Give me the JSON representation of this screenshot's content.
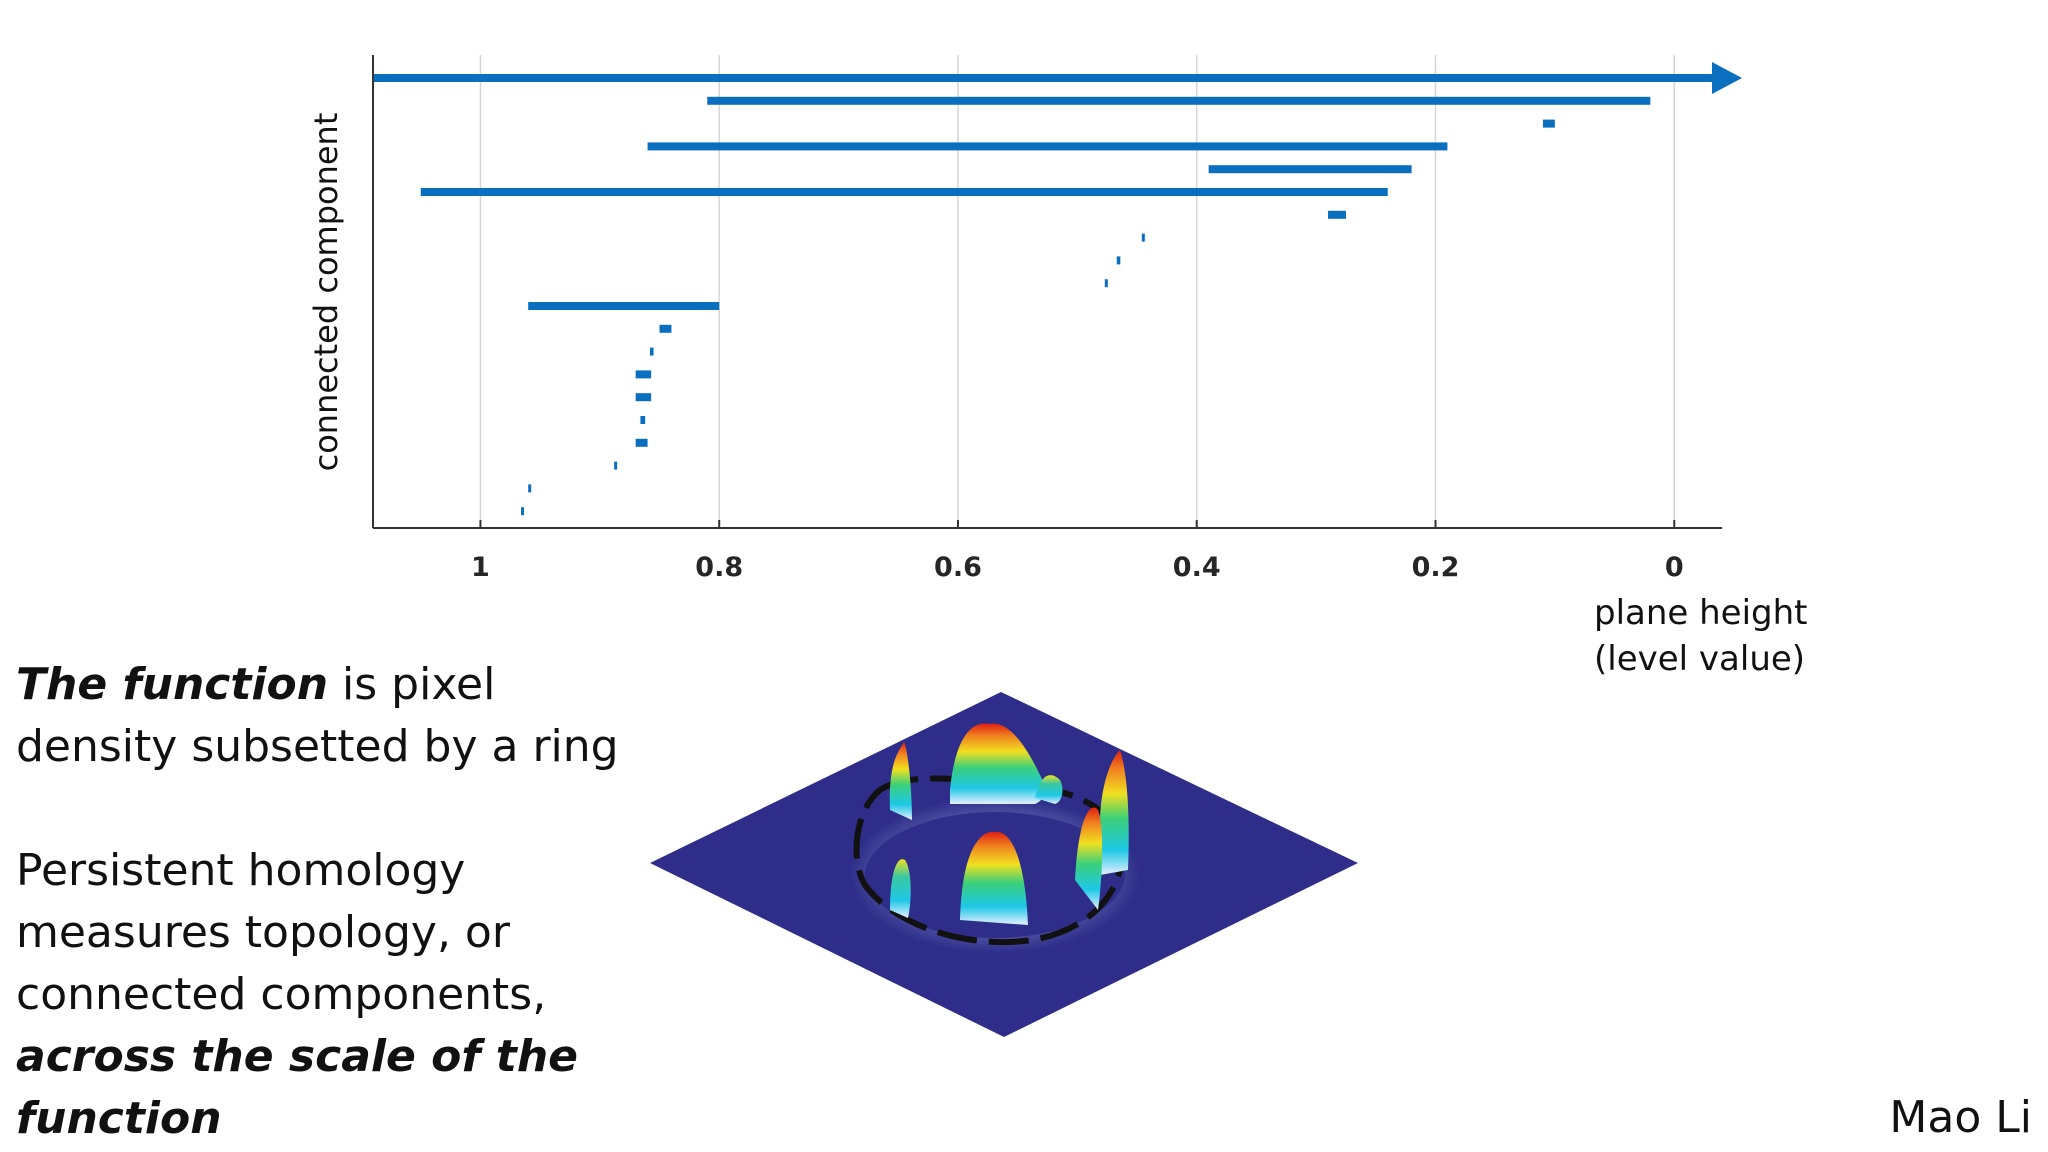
{
  "chart_data": {
    "type": "barcode",
    "title": "",
    "xlabel_line1": "plane height",
    "xlabel_line2": "(level value)",
    "ylabel": "connected component",
    "x_reversed": true,
    "xlim": [
      1.09,
      -0.04
    ],
    "xticks": [
      1,
      0.8,
      0.6,
      0.4,
      0.2,
      0
    ],
    "xtick_labels": [
      "1",
      "0.8",
      "0.6",
      "0.4",
      "0.2",
      "0"
    ],
    "grid": "vertical",
    "bar_color": "#0b6fc0",
    "bars": [
      {
        "birth": 1.09,
        "death": -0.04,
        "infinite": true
      },
      {
        "birth": 0.81,
        "death": 0.02
      },
      {
        "birth": 0.11,
        "death": 0.1
      },
      {
        "birth": 0.86,
        "death": 0.19
      },
      {
        "birth": 0.39,
        "death": 0.22
      },
      {
        "birth": 1.05,
        "death": 0.24
      },
      {
        "birth": 0.29,
        "death": 0.275
      },
      {
        "birth": 0.446,
        "death": 0.444
      },
      {
        "birth": 0.467,
        "death": 0.464
      },
      {
        "birth": 0.477,
        "death": 0.475
      },
      {
        "birth": 0.96,
        "death": 0.8
      },
      {
        "birth": 0.85,
        "death": 0.84
      },
      {
        "birth": 0.858,
        "death": 0.855
      },
      {
        "birth": 0.87,
        "death": 0.857
      },
      {
        "birth": 0.87,
        "death": 0.857
      },
      {
        "birth": 0.866,
        "death": 0.862
      },
      {
        "birth": 0.87,
        "death": 0.86
      },
      {
        "birth": 0.888,
        "death": 0.886
      },
      {
        "birth": 0.96,
        "death": 0.958
      },
      {
        "birth": 0.966,
        "death": 0.964
      }
    ]
  },
  "description": {
    "p1_bold": "The function",
    "p1_rest": " is pixel density subsetted by a ring",
    "p2_text": "Persistent homology measures topology, or connected components, ",
    "p2_bold": "across the scale of the function"
  },
  "author": "Mao Li",
  "surface_colors": {
    "plane": "#2e2e8a",
    "peak_high": "#e01f10",
    "peak_mid": "#f0e020",
    "peak_low": "#1ec8e6",
    "base_glow": "#c8d8ff"
  }
}
